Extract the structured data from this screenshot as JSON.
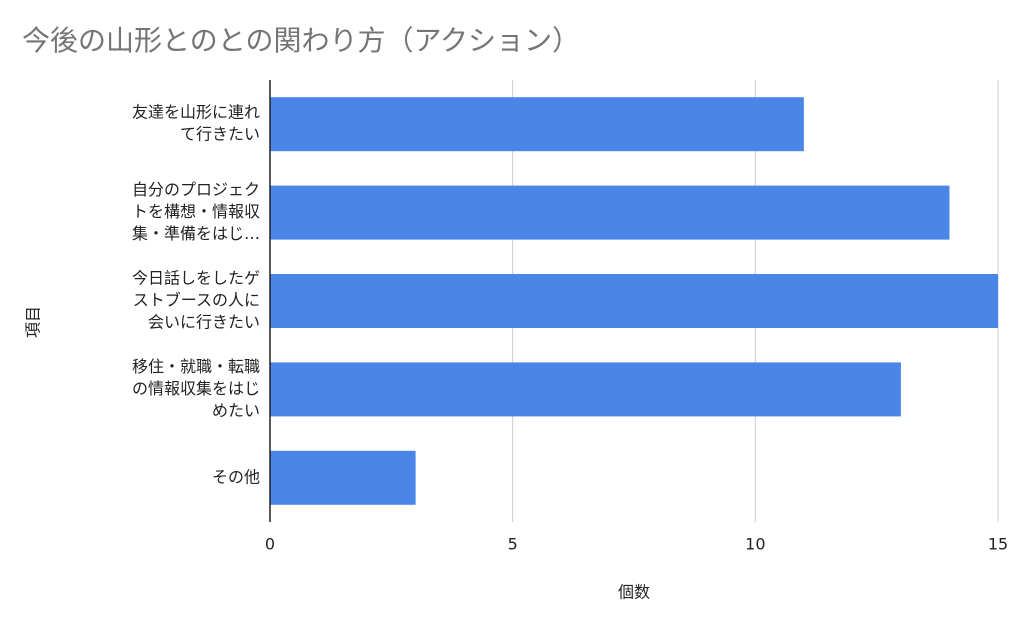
{
  "chart_data": {
    "type": "bar",
    "orientation": "horizontal",
    "title": "今後の山形とのとの関わり方（アクション）",
    "x_label": "個数",
    "y_label": "項目",
    "categories": [
      [
        "友達を山形に連れ",
        "て行きたい"
      ],
      [
        "自分のプロジェク",
        "トを構想・情報収",
        "集・準備をはじ…"
      ],
      [
        "今日話しをしたゲ",
        "ストブースの人に",
        "会いに行きたい"
      ],
      [
        "移住・就職・転職",
        "の情報収集をはじ",
        "めたい"
      ],
      [
        "その他"
      ]
    ],
    "values": [
      11,
      14,
      15,
      13,
      3
    ],
    "color": "#4a86e8",
    "xlim": [
      0,
      15
    ],
    "xticks": [
      0,
      5,
      10,
      15
    ],
    "grid": true
  }
}
